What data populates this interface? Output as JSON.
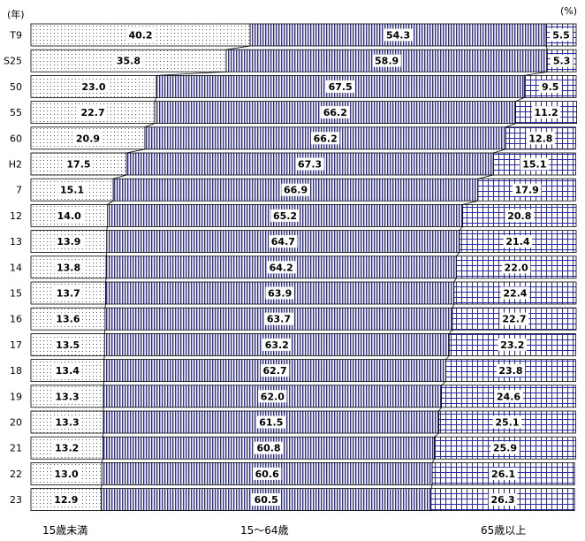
{
  "chart_data": {
    "type": "bar",
    "stacked": "100-percent",
    "orientation": "horizontal",
    "year_unit_label": "(年)",
    "percent_unit_label": "(%)",
    "categories": [
      "T9",
      "S25",
      "50",
      "55",
      "60",
      "H2",
      "7",
      "12",
      "13",
      "14",
      "15",
      "16",
      "17",
      "18",
      "19",
      "20",
      "21",
      "22",
      "23"
    ],
    "series": [
      {
        "name": "15歳未満",
        "pattern": "dots",
        "values": [
          40.2,
          35.8,
          23.0,
          22.7,
          20.9,
          17.5,
          15.1,
          14.0,
          13.9,
          13.8,
          13.7,
          13.6,
          13.5,
          13.4,
          13.3,
          13.3,
          13.2,
          13.0,
          12.9
        ],
        "labels": [
          "40.2",
          "35.8",
          "23.0",
          "22.7",
          "20.9",
          "17.5",
          "15.1",
          "14.0",
          "13.9",
          "13.8",
          "13.7",
          "13.6",
          "13.5",
          "13.4",
          "13.3",
          "13.3",
          "13.2",
          "13.0",
          "12.9"
        ]
      },
      {
        "name": "15～64歳",
        "pattern": "vertical-lines",
        "values": [
          54.3,
          58.9,
          67.5,
          66.2,
          66.2,
          67.3,
          66.9,
          65.2,
          64.7,
          64.2,
          63.9,
          63.7,
          63.2,
          62.7,
          62.0,
          61.5,
          60.8,
          60.6,
          60.5
        ],
        "labels": [
          "54.3",
          "58.9",
          "67.5",
          "66.2",
          "66.2",
          "67.3",
          "66.9",
          "65.2",
          "64.7",
          "64.2",
          "63.9",
          "63.7",
          "63.2",
          "62.7",
          "62.0",
          "61.5",
          "60.8",
          "60.6",
          "60.5"
        ]
      },
      {
        "name": "65歳以上",
        "pattern": "grid",
        "values": [
          5.5,
          5.3,
          9.5,
          11.2,
          12.8,
          15.1,
          17.9,
          20.8,
          21.4,
          22.0,
          22.4,
          22.7,
          23.2,
          23.8,
          24.6,
          25.1,
          25.9,
          26.1,
          26.3
        ],
        "labels": [
          "5.5",
          "5.3",
          "9.5",
          "11.2",
          "12.8",
          "15.1",
          "17.9",
          "20.8",
          "21.4",
          "22.0",
          "22.4",
          "22.7",
          "23.2",
          "23.8",
          "24.6",
          "25.1",
          "25.9",
          "26.1",
          "26.3"
        ]
      }
    ],
    "xlim": [
      0,
      100
    ],
    "legend_position": "bottom",
    "colors": {
      "pattern": "#1a1aa8",
      "dots": "#333333",
      "bar_fill": "#ffffff",
      "connector": "#000000"
    }
  }
}
